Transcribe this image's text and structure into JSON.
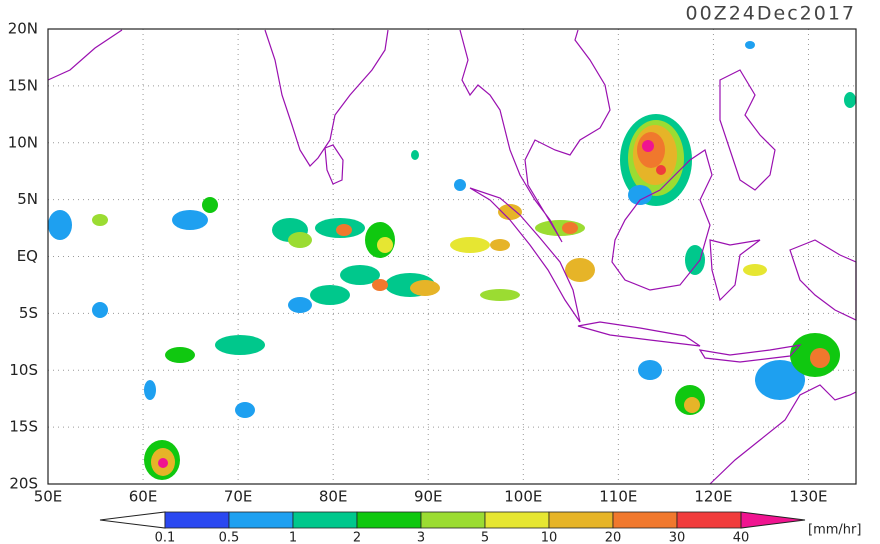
{
  "title": "00Z24Dec2017",
  "map": {
    "lat_labels": [
      "20N",
      "15N",
      "10N",
      "5N",
      "EQ",
      "5S",
      "10S",
      "15S",
      "20S"
    ],
    "lon_labels": [
      "50E",
      "60E",
      "70E",
      "80E",
      "90E",
      "100E",
      "110E",
      "120E",
      "130E"
    ]
  },
  "colorbar": {
    "labels": [
      "0.1",
      "0.5",
      "1",
      "2",
      "3",
      "5",
      "10",
      "20",
      "30",
      "40"
    ],
    "colors": [
      "#ffffff",
      "#2b48f0",
      "#1ea0f0",
      "#00c88c",
      "#10c810",
      "#9bdc32",
      "#e6e632",
      "#e6b428",
      "#f0782d",
      "#f03c3c",
      "#f01490"
    ],
    "unit": "[mm/hr]"
  }
}
